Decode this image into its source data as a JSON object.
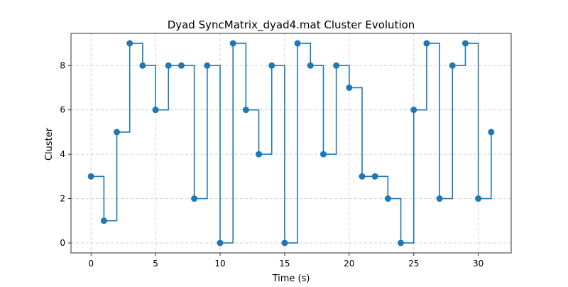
{
  "chart_data": {
    "type": "line",
    "subtype": "step-post",
    "title": "Dyad SyncMatrix_dyad4.mat Cluster Evolution",
    "xlabel": "Time (s)",
    "ylabel": "Cluster",
    "xlim": [
      -1.55,
      32.55
    ],
    "ylim": [
      -0.45,
      9.45
    ],
    "xticks": [
      0,
      5,
      10,
      15,
      20,
      25,
      30
    ],
    "yticks": [
      0,
      2,
      4,
      6,
      8
    ],
    "grid": true,
    "legend": "none",
    "series": [
      {
        "color": "#1f77b4",
        "marker": "circle",
        "x": [
          0,
          1,
          2,
          3,
          4,
          5,
          6,
          7,
          8,
          9,
          10,
          11,
          12,
          13,
          14,
          15,
          16,
          17,
          18,
          19,
          20,
          21,
          22,
          23,
          24,
          25,
          26,
          27,
          28,
          29,
          30,
          31
        ],
        "y": [
          3,
          1,
          5,
          9,
          8,
          6,
          8,
          8,
          2,
          8,
          0,
          9,
          6,
          4,
          8,
          0,
          9,
          8,
          4,
          8,
          7,
          3,
          3,
          2,
          0,
          6,
          9,
          2,
          8,
          9,
          2,
          5
        ]
      }
    ]
  }
}
